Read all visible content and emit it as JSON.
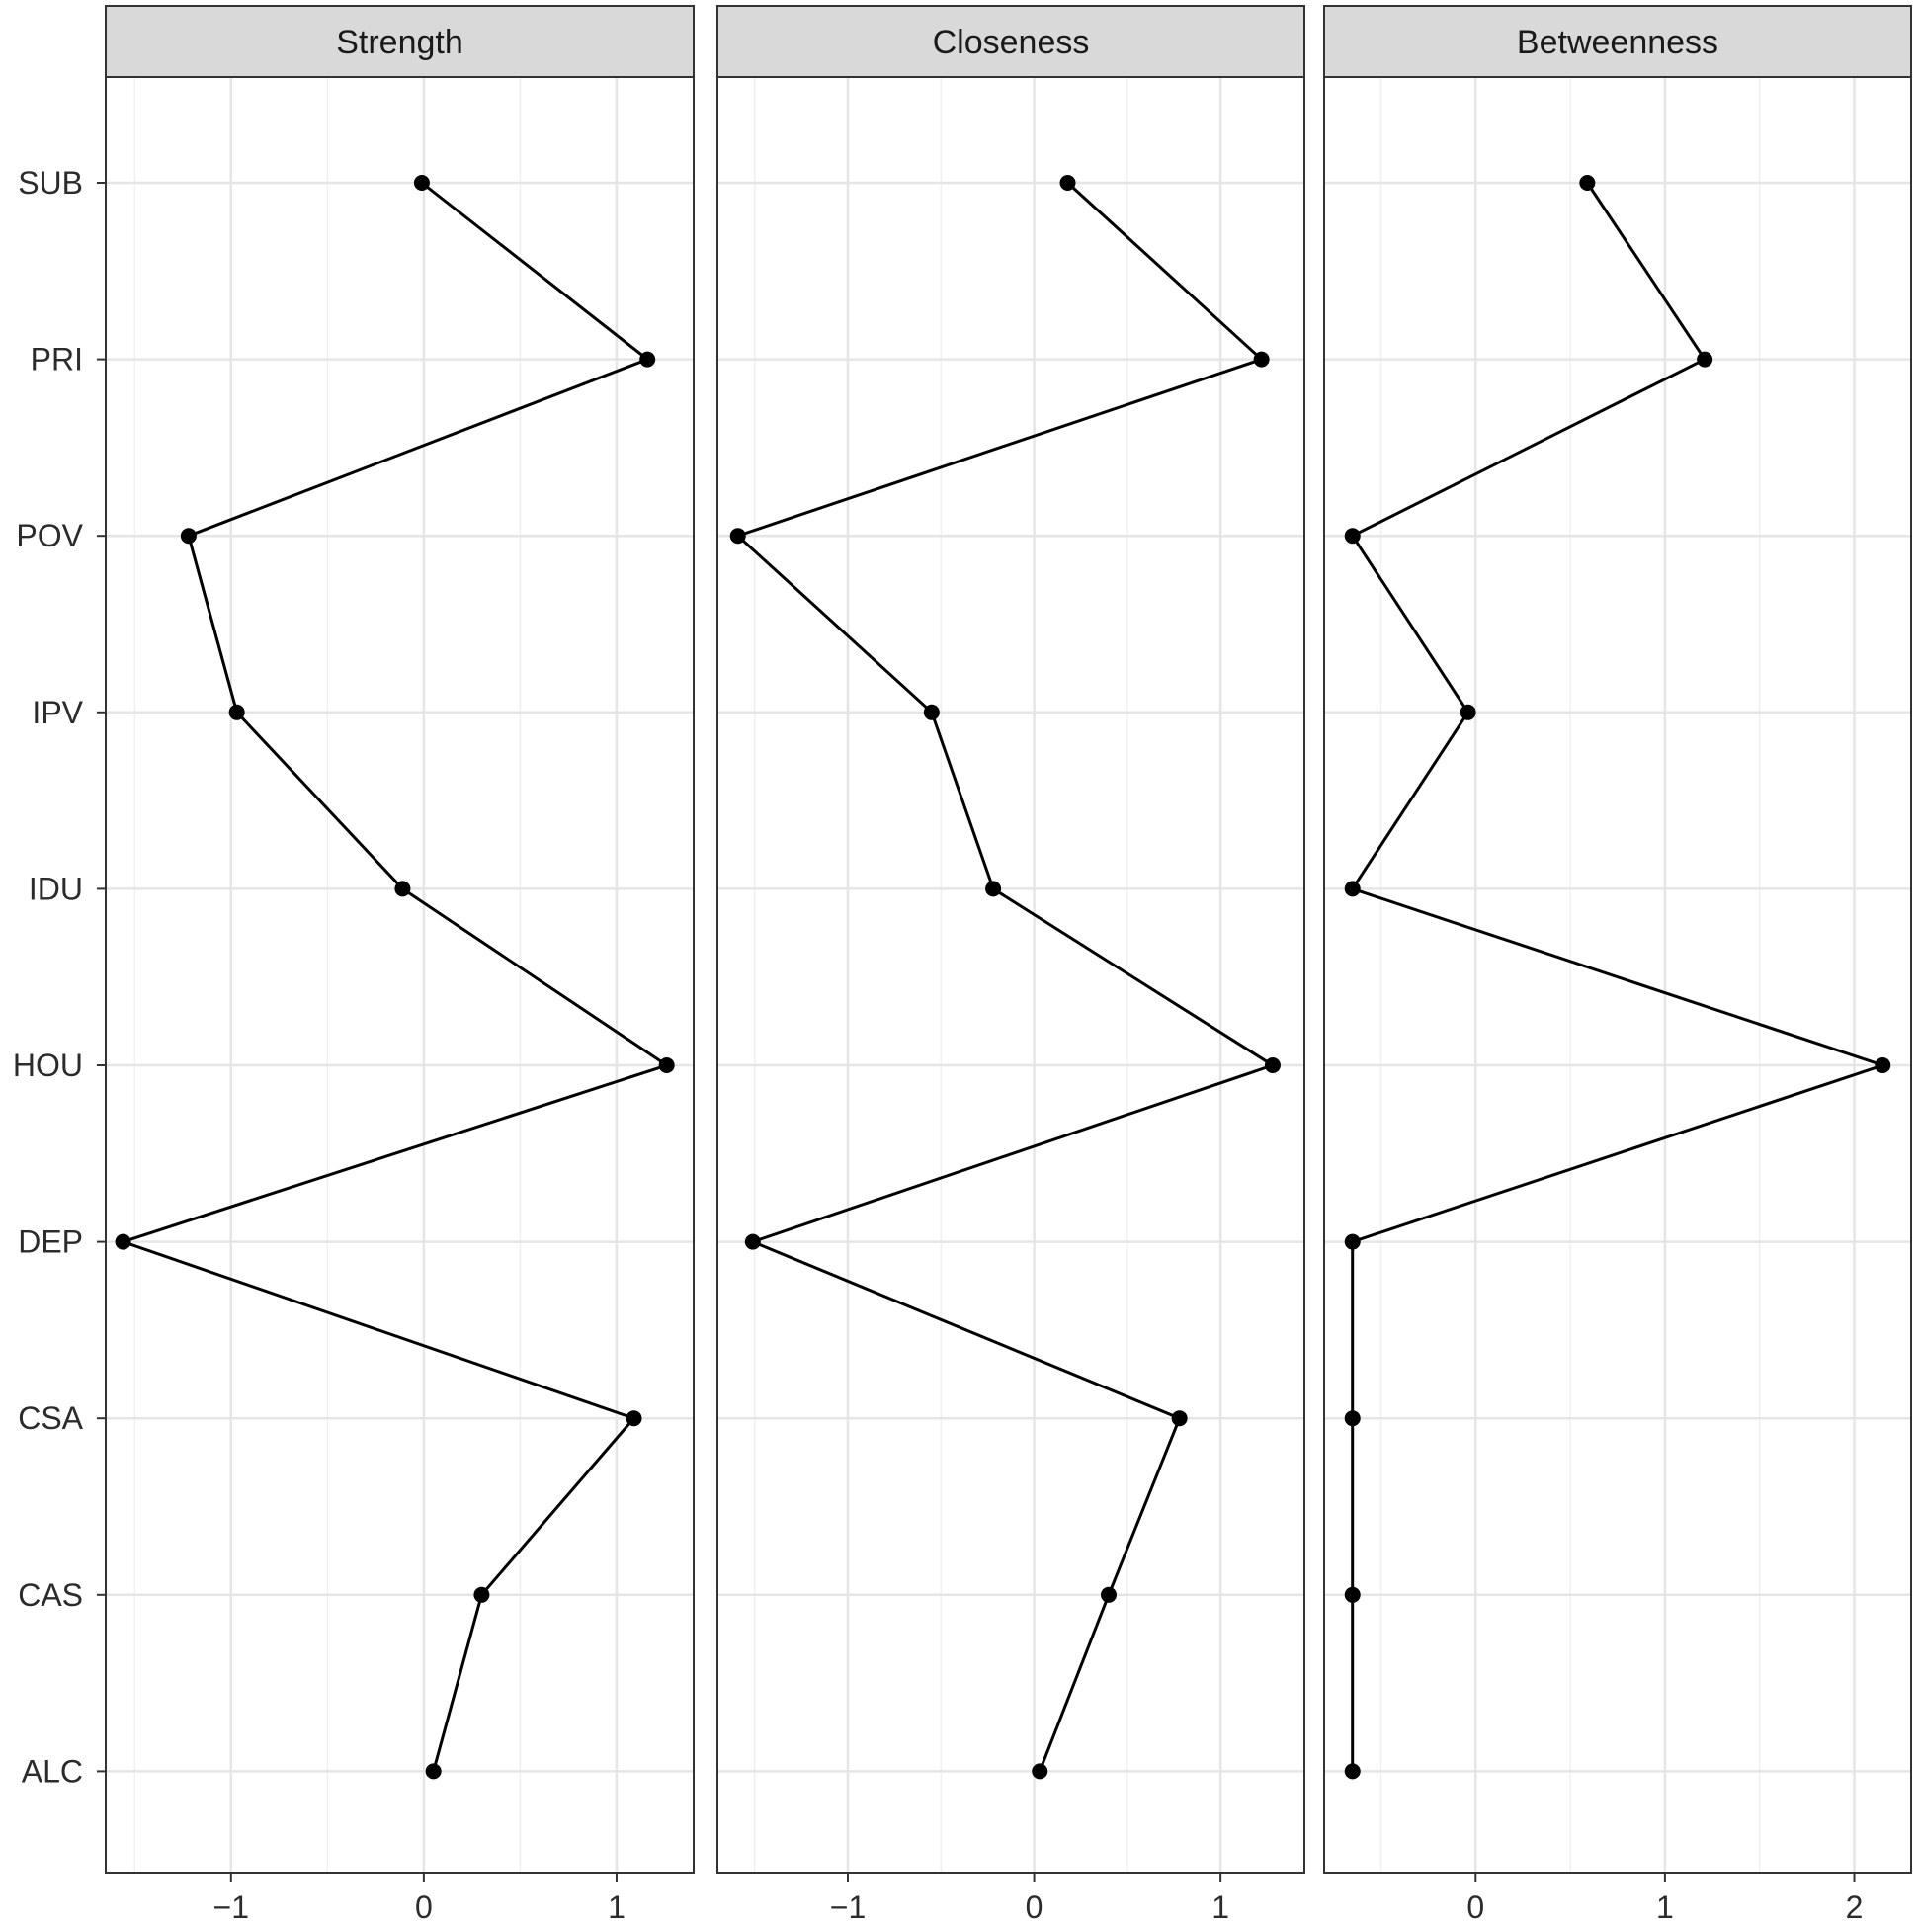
{
  "chart_data": {
    "type": "line",
    "layout": "faceted",
    "categories": [
      "SUB",
      "PRI",
      "POV",
      "IPV",
      "IDU",
      "HOU",
      "DEP",
      "CSA",
      "CAS",
      "ALC"
    ],
    "panels": [
      {
        "title": "Strength",
        "values": [
          -0.01,
          1.16,
          -1.22,
          -0.97,
          -0.11,
          1.26,
          -1.56,
          1.09,
          0.3,
          0.05
        ],
        "xlim": [
          -1.65,
          1.4
        ],
        "xticks": [
          -1,
          0,
          1
        ]
      },
      {
        "title": "Closeness",
        "values": [
          0.18,
          1.22,
          -1.59,
          -0.55,
          -0.22,
          1.28,
          -1.51,
          0.78,
          0.4,
          0.03
        ],
        "xlim": [
          -1.7,
          1.45
        ],
        "xticks": [
          -1,
          0,
          1
        ]
      },
      {
        "title": "Betweenness",
        "values": [
          0.59,
          1.21,
          -0.65,
          -0.04,
          -0.65,
          2.15,
          -0.65,
          -0.65,
          -0.65,
          -0.65
        ],
        "xlim": [
          -0.8,
          2.3
        ],
        "xticks": [
          0,
          1,
          2
        ]
      }
    ],
    "tick_labels": {
      "x": {
        "m1": "−1",
        "0": "0",
        "1": "1",
        "2": "2"
      }
    },
    "grid": true,
    "legend": "none",
    "colors": {
      "line": "#000000",
      "point": "#000000",
      "grid": "#e5e5e5",
      "strip_fill": "#d9d9d9",
      "panel_border": "#333333",
      "background": "#ffffff"
    }
  }
}
